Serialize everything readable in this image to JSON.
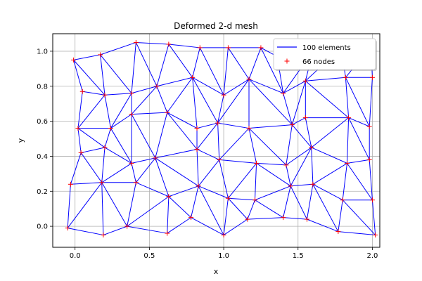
{
  "chart_data": {
    "type": "triplot",
    "title": "Deformed 2-d mesh",
    "xlabel": "x",
    "ylabel": "y",
    "xlim": [
      -0.15,
      2.05
    ],
    "ylim": [
      -0.12,
      1.1
    ],
    "xticks": [
      0.0,
      0.5,
      1.0,
      1.5,
      2.0
    ],
    "xtick_labels": [
      "0.0",
      "0.5",
      "1.0",
      "1.5",
      "2.0"
    ],
    "yticks": [
      0.0,
      0.2,
      0.4,
      0.6,
      0.8,
      1.0
    ],
    "ytick_labels": [
      "0.0",
      "0.2",
      "0.4",
      "0.6",
      "0.8",
      "1.0"
    ],
    "grid": true,
    "legend_position": "upper right",
    "series": [
      {
        "name": "100 elements",
        "kind": "line",
        "color": "#0000ff"
      },
      {
        "name": "66 nodes",
        "kind": "marker",
        "marker": "+",
        "color": "#ff0000"
      }
    ],
    "nodes": [
      [
        -0.05,
        -0.01
      ],
      [
        0.19,
        -0.05
      ],
      [
        0.35,
        0.0
      ],
      [
        0.62,
        -0.04
      ],
      [
        0.78,
        0.05
      ],
      [
        1.0,
        -0.05
      ],
      [
        1.16,
        0.04
      ],
      [
        1.4,
        0.05
      ],
      [
        1.56,
        0.04
      ],
      [
        1.77,
        -0.03
      ],
      [
        2.02,
        -0.05
      ],
      [
        -0.03,
        0.24
      ],
      [
        0.18,
        0.25
      ],
      [
        0.41,
        0.25
      ],
      [
        0.63,
        0.17
      ],
      [
        0.83,
        0.23
      ],
      [
        1.03,
        0.16
      ],
      [
        1.21,
        0.15
      ],
      [
        1.45,
        0.23
      ],
      [
        1.6,
        0.24
      ],
      [
        1.8,
        0.15
      ],
      [
        2.0,
        0.15
      ],
      [
        0.04,
        0.42
      ],
      [
        0.2,
        0.45
      ],
      [
        0.38,
        0.36
      ],
      [
        0.54,
        0.39
      ],
      [
        0.82,
        0.44
      ],
      [
        0.97,
        0.38
      ],
      [
        1.22,
        0.36
      ],
      [
        1.42,
        0.35
      ],
      [
        1.59,
        0.45
      ],
      [
        1.83,
        0.36
      ],
      [
        1.98,
        0.38
      ],
      [
        0.02,
        0.56
      ],
      [
        0.24,
        0.56
      ],
      [
        0.38,
        0.64
      ],
      [
        0.62,
        0.65
      ],
      [
        0.82,
        0.56
      ],
      [
        0.96,
        0.59
      ],
      [
        1.17,
        0.56
      ],
      [
        1.46,
        0.58
      ],
      [
        1.55,
        0.62
      ],
      [
        1.84,
        0.62
      ],
      [
        1.98,
        0.57
      ],
      [
        0.05,
        0.77
      ],
      [
        0.2,
        0.75
      ],
      [
        0.38,
        0.76
      ],
      [
        0.55,
        0.8
      ],
      [
        0.79,
        0.85
      ],
      [
        1.0,
        0.75
      ],
      [
        1.17,
        0.84
      ],
      [
        1.4,
        0.76
      ],
      [
        1.55,
        0.83
      ],
      [
        1.82,
        0.85
      ],
      [
        2.0,
        0.85
      ],
      [
        -0.01,
        0.95
      ],
      [
        0.17,
        0.98
      ],
      [
        0.41,
        1.05
      ],
      [
        0.63,
        1.04
      ],
      [
        0.84,
        1.02
      ],
      [
        1.03,
        1.02
      ],
      [
        1.25,
        1.02
      ],
      [
        1.36,
        0.97
      ],
      [
        1.6,
        1.0
      ],
      [
        1.79,
        1.02
      ],
      [
        1.99,
        1.03
      ]
    ],
    "edges": [
      [
        0,
        1
      ],
      [
        1,
        2
      ],
      [
        2,
        3
      ],
      [
        3,
        4
      ],
      [
        4,
        5
      ],
      [
        5,
        6
      ],
      [
        6,
        7
      ],
      [
        7,
        8
      ],
      [
        8,
        9
      ],
      [
        9,
        10
      ],
      [
        0,
        11
      ],
      [
        0,
        12
      ],
      [
        1,
        12
      ],
      [
        2,
        12
      ],
      [
        2,
        13
      ],
      [
        2,
        14
      ],
      [
        3,
        14
      ],
      [
        4,
        14
      ],
      [
        4,
        15
      ],
      [
        5,
        15
      ],
      [
        5,
        16
      ],
      [
        6,
        16
      ],
      [
        6,
        17
      ],
      [
        7,
        17
      ],
      [
        7,
        18
      ],
      [
        8,
        18
      ],
      [
        8,
        19
      ],
      [
        9,
        19
      ],
      [
        9,
        20
      ],
      [
        10,
        20
      ],
      [
        10,
        21
      ],
      [
        11,
        12
      ],
      [
        12,
        13
      ],
      [
        13,
        14
      ],
      [
        14,
        15
      ],
      [
        15,
        16
      ],
      [
        16,
        17
      ],
      [
        17,
        18
      ],
      [
        18,
        19
      ],
      [
        19,
        20
      ],
      [
        20,
        21
      ],
      [
        11,
        22
      ],
      [
        12,
        22
      ],
      [
        12,
        23
      ],
      [
        12,
        24
      ],
      [
        13,
        24
      ],
      [
        13,
        25
      ],
      [
        14,
        25
      ],
      [
        15,
        25
      ],
      [
        15,
        26
      ],
      [
        15,
        27
      ],
      [
        16,
        27
      ],
      [
        16,
        28
      ],
      [
        17,
        28
      ],
      [
        18,
        28
      ],
      [
        18,
        29
      ],
      [
        18,
        30
      ],
      [
        19,
        30
      ],
      [
        19,
        31
      ],
      [
        20,
        31
      ],
      [
        21,
        31
      ],
      [
        21,
        32
      ],
      [
        22,
        23
      ],
      [
        23,
        24
      ],
      [
        24,
        25
      ],
      [
        25,
        26
      ],
      [
        26,
        27
      ],
      [
        27,
        28
      ],
      [
        28,
        29
      ],
      [
        29,
        30
      ],
      [
        30,
        31
      ],
      [
        31,
        32
      ],
      [
        22,
        33
      ],
      [
        23,
        33
      ],
      [
        23,
        34
      ],
      [
        24,
        34
      ],
      [
        24,
        35
      ],
      [
        25,
        35
      ],
      [
        25,
        36
      ],
      [
        26,
        36
      ],
      [
        26,
        37
      ],
      [
        26,
        38
      ],
      [
        27,
        38
      ],
      [
        27,
        39
      ],
      [
        28,
        39
      ],
      [
        29,
        39
      ],
      [
        29,
        40
      ],
      [
        30,
        40
      ],
      [
        30,
        41
      ],
      [
        30,
        42
      ],
      [
        31,
        42
      ],
      [
        32,
        42
      ],
      [
        32,
        43
      ],
      [
        33,
        34
      ],
      [
        34,
        35
      ],
      [
        35,
        36
      ],
      [
        36,
        37
      ],
      [
        37,
        38
      ],
      [
        38,
        39
      ],
      [
        39,
        40
      ],
      [
        40,
        41
      ],
      [
        41,
        42
      ],
      [
        42,
        43
      ],
      [
        33,
        44
      ],
      [
        33,
        45
      ],
      [
        34,
        45
      ],
      [
        34,
        46
      ],
      [
        35,
        46
      ],
      [
        35,
        47
      ],
      [
        36,
        47
      ],
      [
        36,
        48
      ],
      [
        37,
        48
      ],
      [
        38,
        48
      ],
      [
        38,
        49
      ],
      [
        38,
        50
      ],
      [
        39,
        50
      ],
      [
        40,
        50
      ],
      [
        40,
        51
      ],
      [
        40,
        52
      ],
      [
        41,
        52
      ],
      [
        42,
        52
      ],
      [
        42,
        53
      ],
      [
        43,
        53
      ],
      [
        43,
        54
      ],
      [
        44,
        45
      ],
      [
        45,
        46
      ],
      [
        46,
        47
      ],
      [
        47,
        48
      ],
      [
        48,
        49
      ],
      [
        49,
        50
      ],
      [
        50,
        51
      ],
      [
        51,
        52
      ],
      [
        52,
        53
      ],
      [
        53,
        54
      ],
      [
        44,
        55
      ],
      [
        45,
        55
      ],
      [
        45,
        56
      ],
      [
        46,
        56
      ],
      [
        46,
        57
      ],
      [
        47,
        57
      ],
      [
        47,
        58
      ],
      [
        48,
        58
      ],
      [
        48,
        59
      ],
      [
        49,
        59
      ],
      [
        49,
        60
      ],
      [
        50,
        60
      ],
      [
        50,
        61
      ],
      [
        51,
        61
      ],
      [
        51,
        62
      ],
      [
        51,
        63
      ],
      [
        52,
        63
      ],
      [
        52,
        64
      ],
      [
        53,
        64
      ],
      [
        53,
        65
      ],
      [
        54,
        65
      ],
      [
        55,
        56
      ],
      [
        56,
        57
      ],
      [
        57,
        58
      ],
      [
        58,
        59
      ],
      [
        59,
        60
      ],
      [
        60,
        61
      ],
      [
        61,
        62
      ],
      [
        62,
        63
      ],
      [
        63,
        64
      ],
      [
        64,
        65
      ]
    ]
  }
}
